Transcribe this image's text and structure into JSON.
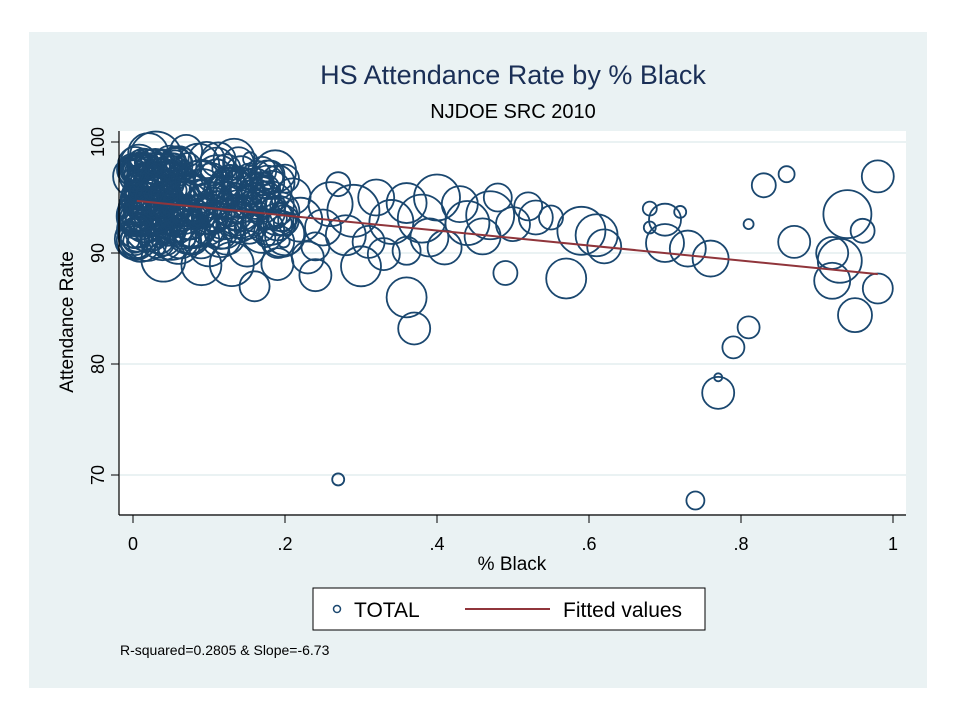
{
  "chart_data": {
    "type": "scatter",
    "title": "HS Attendance Rate by % Black",
    "subtitle": "NJDOE SRC 2010",
    "xlabel": "% Black",
    "ylabel": "Attendance Rate",
    "xlim": [
      0,
      1
    ],
    "ylim": [
      70,
      100
    ],
    "xticks": [
      {
        "v": 0,
        "label": "0"
      },
      {
        "v": 0.2,
        "label": ".2"
      },
      {
        "v": 0.4,
        "label": ".4"
      },
      {
        "v": 0.6,
        "label": ".6"
      },
      {
        "v": 0.8,
        "label": ".8"
      },
      {
        "v": 1,
        "label": "1"
      }
    ],
    "yticks": [
      {
        "v": 70,
        "label": "70"
      },
      {
        "v": 80,
        "label": "80"
      },
      {
        "v": 90,
        "label": "90"
      },
      {
        "v": 100,
        "label": "100"
      }
    ],
    "grid": true,
    "legend": {
      "placement": "bottom",
      "entries": [
        {
          "label": "TOTAL",
          "kind": "hollow-circle",
          "color": "#1a476f"
        },
        {
          "label": "Fitted values",
          "kind": "line",
          "color": "#90353b"
        }
      ]
    },
    "note": "R-squared=0.2805 & Slope=-6.73",
    "colors": {
      "marker": "#1a476f",
      "fit": "#90353b",
      "panel": "#eaf2f3",
      "grid": "#eaf2f3"
    },
    "fit": {
      "x": [
        0.005,
        0.98
      ],
      "y": [
        94.7,
        88.1
      ],
      "r_squared": 0.2805,
      "slope": -6.73
    },
    "series": [
      {
        "name": "TOTAL",
        "marker": "hollow-circle-weighted",
        "points": [
          [
            0.27,
            69.6,
            6
          ],
          [
            0.74,
            67.7,
            9
          ],
          [
            0.77,
            78.8,
            4
          ],
          [
            0.77,
            77.4,
            16
          ],
          [
            0.79,
            81.5,
            11
          ],
          [
            0.81,
            83.3,
            11
          ],
          [
            0.37,
            83.2,
            16
          ],
          [
            0.36,
            86.0,
            20
          ],
          [
            0.16,
            87.0,
            15
          ],
          [
            0.49,
            88.2,
            12
          ],
          [
            0.57,
            87.7,
            20
          ],
          [
            0.68,
            94.0,
            7
          ],
          [
            0.72,
            93.7,
            6
          ],
          [
            0.81,
            92.6,
            5
          ],
          [
            0.83,
            96.1,
            12
          ],
          [
            0.86,
            97.1,
            8
          ],
          [
            0.98,
            96.9,
            16
          ],
          [
            0.94,
            93.5,
            24
          ],
          [
            0.96,
            92.0,
            12
          ],
          [
            0.87,
            91.0,
            16
          ],
          [
            0.92,
            90.0,
            16
          ],
          [
            0.93,
            89.3,
            22
          ],
          [
            0.92,
            87.5,
            18
          ],
          [
            0.98,
            86.8,
            15
          ],
          [
            0.95,
            84.4,
            17
          ],
          [
            0.76,
            89.5,
            18
          ],
          [
            0.73,
            90.4,
            18
          ],
          [
            0.7,
            90.9,
            19
          ],
          [
            0.68,
            92.3,
            6
          ],
          [
            0.7,
            93.0,
            16
          ],
          [
            0.62,
            90.6,
            17
          ],
          [
            0.61,
            91.6,
            21
          ],
          [
            0.59,
            92.0,
            24
          ],
          [
            0.53,
            93.2,
            17
          ],
          [
            0.52,
            94.2,
            14
          ],
          [
            0.55,
            93.2,
            12
          ],
          [
            0.5,
            92.6,
            17
          ],
          [
            0.47,
            93.4,
            24
          ],
          [
            0.44,
            92.7,
            22
          ],
          [
            0.46,
            91.5,
            18
          ],
          [
            0.4,
            95.0,
            23
          ],
          [
            0.39,
            91.4,
            19
          ],
          [
            0.41,
            90.5,
            17
          ],
          [
            0.38,
            93.1,
            24
          ],
          [
            0.36,
            94.5,
            20
          ],
          [
            0.36,
            90.2,
            14
          ],
          [
            0.34,
            92.8,
            22
          ],
          [
            0.32,
            95.0,
            18
          ],
          [
            0.31,
            91.0,
            16
          ],
          [
            0.3,
            88.8,
            20
          ],
          [
            0.29,
            93.8,
            26
          ],
          [
            0.28,
            91.6,
            20
          ],
          [
            0.26,
            94.4,
            22
          ],
          [
            0.25,
            92.3,
            18
          ],
          [
            0.24,
            88.0,
            16
          ],
          [
            0.24,
            90.6,
            14
          ],
          [
            0.22,
            93.0,
            22
          ],
          [
            0.21,
            95.1,
            18
          ],
          [
            0.2,
            91.6,
            20
          ],
          [
            0.19,
            89.0,
            16
          ],
          [
            0.18,
            94.3,
            24
          ],
          [
            0.17,
            92.0,
            22
          ],
          [
            0.17,
            97.4,
            14
          ],
          [
            0.16,
            96.0,
            18
          ],
          [
            0.15,
            90.4,
            18
          ],
          [
            0.14,
            93.5,
            24
          ],
          [
            0.13,
            95.7,
            22
          ],
          [
            0.12,
            92.2,
            20
          ],
          [
            0.11,
            97.0,
            16
          ],
          [
            0.1,
            94.0,
            26
          ],
          [
            0.1,
            90.6,
            20
          ],
          [
            0.09,
            96.4,
            22
          ],
          [
            0.08,
            92.6,
            24
          ],
          [
            0.07,
            94.8,
            26
          ],
          [
            0.06,
            98.0,
            18
          ],
          [
            0.06,
            91.0,
            22
          ],
          [
            0.05,
            95.9,
            24
          ],
          [
            0.05,
            93.0,
            26
          ],
          [
            0.04,
            89.4,
            22
          ],
          [
            0.04,
            97.0,
            22
          ],
          [
            0.03,
            94.3,
            28
          ],
          [
            0.03,
            98.6,
            26
          ],
          [
            0.02,
            92.3,
            24
          ],
          [
            0.02,
            96.0,
            24
          ],
          [
            0.01,
            94.0,
            22
          ],
          [
            0.01,
            91.0,
            20
          ],
          [
            0.01,
            97.3,
            18
          ],
          [
            0.005,
            95.0,
            16
          ],
          [
            0.005,
            92.8,
            14
          ],
          [
            0.02,
            99.0,
            20
          ],
          [
            0.07,
            99.2,
            16
          ],
          [
            0.09,
            88.9,
            20
          ],
          [
            0.13,
            89.0,
            22
          ],
          [
            0.2,
            96.7,
            14
          ],
          [
            0.27,
            96.2,
            12
          ],
          [
            0.23,
            89.6,
            16
          ],
          [
            0.33,
            89.9,
            16
          ],
          [
            0.43,
            94.4,
            18
          ],
          [
            0.48,
            95.0,
            14
          ]
        ]
      }
    ]
  }
}
